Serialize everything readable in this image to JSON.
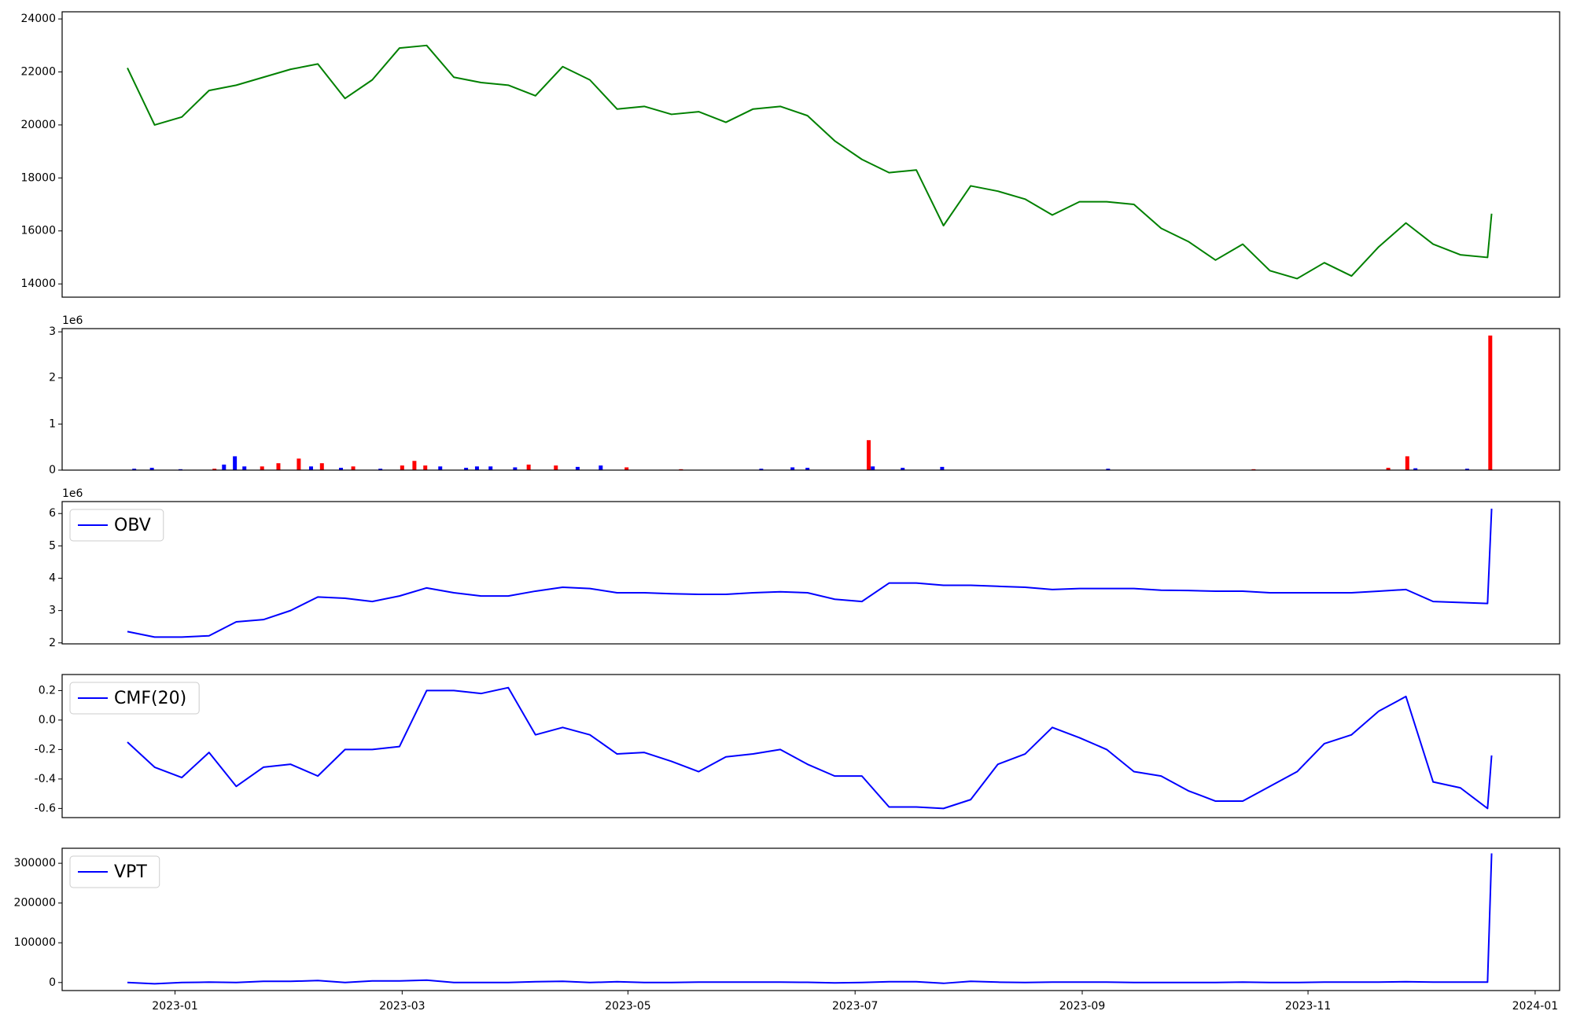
{
  "chart_data": [
    {
      "type": "line",
      "x": [
        2022.965,
        2022.985,
        2023.005,
        2023.025,
        2023.045,
        2023.065,
        2023.085,
        2023.105,
        2023.125,
        2023.145,
        2023.165,
        2023.185,
        2023.205,
        2023.225,
        2023.245,
        2023.265,
        2023.285,
        2023.305,
        2023.325,
        2023.345,
        2023.365,
        2023.385,
        2023.405,
        2023.425,
        2023.445,
        2023.465,
        2023.485,
        2023.505,
        2023.525,
        2023.545,
        2023.565,
        2023.585,
        2023.605,
        2023.625,
        2023.645,
        2023.665,
        2023.685,
        2023.705,
        2023.725,
        2023.745,
        2023.765,
        2023.785,
        2023.805,
        2023.825,
        2023.845,
        2023.865,
        2023.885,
        2023.905,
        2023.925,
        2023.945,
        2023.965,
        2023.968
      ],
      "series": [
        {
          "color": "#008000",
          "values": [
            22150,
            20000,
            20300,
            21300,
            21500,
            21800,
            22100,
            22300,
            21000,
            21700,
            22900,
            23000,
            21800,
            21600,
            21500,
            21100,
            22200,
            21700,
            20600,
            20700,
            20400,
            20500,
            20100,
            20600,
            20700,
            20350,
            19400,
            18700,
            18200,
            18300,
            16200,
            17700,
            17500,
            17200,
            16600,
            17100,
            17100,
            17000,
            16100,
            15600,
            14900,
            15500,
            14500,
            14200,
            14800,
            14300,
            15400,
            16300,
            15500,
            15100,
            15000,
            16650
          ]
        }
      ],
      "xlim": [
        2022.917,
        2024.018
      ],
      "ylim": [
        13500,
        24270
      ],
      "yticks": [
        14000,
        16000,
        18000,
        20000,
        22000,
        24000
      ]
    },
    {
      "type": "bar",
      "offset_label": "1e6",
      "x": [
        2022.97,
        2022.983,
        2023.004,
        2023.029,
        2023.036,
        2023.044,
        2023.051,
        2023.064,
        2023.076,
        2023.091,
        2023.1,
        2023.108,
        2023.122,
        2023.131,
        2023.151,
        2023.167,
        2023.176,
        2023.184,
        2023.195,
        2023.214,
        2023.222,
        2023.232,
        2023.25,
        2023.26,
        2023.28,
        2023.296,
        2023.313,
        2023.332,
        2023.372,
        2023.431,
        2023.454,
        2023.465,
        2023.51,
        2023.513,
        2023.535,
        2023.564,
        2023.686,
        2023.793,
        2023.892,
        2023.906,
        2023.912,
        2023.95,
        2023.967
      ],
      "values": [
        0.03,
        0.05,
        0.02,
        0.03,
        0.12,
        0.3,
        0.08,
        0.08,
        0.15,
        0.25,
        0.08,
        0.15,
        0.05,
        0.08,
        0.03,
        0.1,
        0.2,
        0.1,
        0.08,
        0.05,
        0.08,
        0.08,
        0.06,
        0.12,
        0.1,
        0.07,
        0.1,
        0.06,
        0.02,
        0.03,
        0.06,
        0.05,
        0.65,
        0.08,
        0.05,
        0.07,
        0.03,
        0.02,
        0.05,
        0.3,
        0.04,
        0.03,
        2.92
      ],
      "colors": [
        "#0000ff",
        "#0000ff",
        "#0000ff",
        "#ff0000",
        "#0000ff",
        "#0000ff",
        "#0000ff",
        "#ff0000",
        "#ff0000",
        "#ff0000",
        "#0000ff",
        "#ff0000",
        "#0000ff",
        "#ff0000",
        "#0000ff",
        "#ff0000",
        "#ff0000",
        "#ff0000",
        "#0000ff",
        "#0000ff",
        "#0000ff",
        "#0000ff",
        "#0000ff",
        "#ff0000",
        "#ff0000",
        "#0000ff",
        "#0000ff",
        "#ff0000",
        "#ff0000",
        "#0000ff",
        "#0000ff",
        "#0000ff",
        "#ff0000",
        "#0000ff",
        "#0000ff",
        "#0000ff",
        "#0000ff",
        "#ff0000",
        "#ff0000",
        "#ff0000",
        "#0000ff",
        "#0000ff",
        "#ff0000"
      ],
      "xlim": [
        2022.917,
        2024.018
      ],
      "ylim": [
        0,
        3.07
      ],
      "yticks": [
        0,
        1,
        2,
        3
      ]
    },
    {
      "type": "line",
      "offset_label": "1e6",
      "legend": "upper left",
      "x": [
        2022.965,
        2022.985,
        2023.005,
        2023.025,
        2023.045,
        2023.065,
        2023.085,
        2023.105,
        2023.125,
        2023.145,
        2023.165,
        2023.185,
        2023.205,
        2023.225,
        2023.245,
        2023.265,
        2023.285,
        2023.305,
        2023.325,
        2023.345,
        2023.365,
        2023.385,
        2023.405,
        2023.425,
        2023.445,
        2023.465,
        2023.485,
        2023.505,
        2023.525,
        2023.545,
        2023.565,
        2023.585,
        2023.605,
        2023.625,
        2023.645,
        2023.665,
        2023.685,
        2023.705,
        2023.725,
        2023.745,
        2023.765,
        2023.785,
        2023.805,
        2023.825,
        2023.845,
        2023.865,
        2023.885,
        2023.905,
        2023.925,
        2023.945,
        2023.965,
        2023.968
      ],
      "series": [
        {
          "name": "OBV",
          "color": "#0000ff",
          "values": [
            2.35,
            2.18,
            2.18,
            2.22,
            2.65,
            2.72,
            3.0,
            3.42,
            3.38,
            3.28,
            3.45,
            3.7,
            3.55,
            3.45,
            3.45,
            3.6,
            3.72,
            3.68,
            3.55,
            3.55,
            3.52,
            3.5,
            3.5,
            3.55,
            3.58,
            3.55,
            3.35,
            3.28,
            3.85,
            3.85,
            3.78,
            3.78,
            3.75,
            3.72,
            3.65,
            3.68,
            3.68,
            3.68,
            3.63,
            3.62,
            3.6,
            3.6,
            3.55,
            3.55,
            3.55,
            3.55,
            3.6,
            3.65,
            3.28,
            3.25,
            3.22,
            6.15
          ]
        }
      ],
      "xlim": [
        2022.917,
        2024.018
      ],
      "ylim": [
        1.97,
        6.37
      ],
      "yticks": [
        2,
        3,
        4,
        5,
        6
      ]
    },
    {
      "type": "line",
      "legend": "upper left",
      "x": [
        2022.965,
        2022.985,
        2023.005,
        2023.025,
        2023.045,
        2023.065,
        2023.085,
        2023.105,
        2023.125,
        2023.145,
        2023.165,
        2023.185,
        2023.205,
        2023.225,
        2023.245,
        2023.265,
        2023.285,
        2023.305,
        2023.325,
        2023.345,
        2023.365,
        2023.385,
        2023.405,
        2023.425,
        2023.445,
        2023.465,
        2023.485,
        2023.505,
        2023.525,
        2023.545,
        2023.565,
        2023.585,
        2023.605,
        2023.625,
        2023.645,
        2023.665,
        2023.685,
        2023.705,
        2023.725,
        2023.745,
        2023.765,
        2023.785,
        2023.805,
        2023.825,
        2023.845,
        2023.865,
        2023.885,
        2023.905,
        2023.925,
        2023.945,
        2023.965,
        2023.968
      ],
      "series": [
        {
          "name": "CMF(20)",
          "color": "#0000ff",
          "values": [
            -0.15,
            -0.32,
            -0.39,
            -0.22,
            -0.45,
            -0.32,
            -0.3,
            -0.38,
            -0.2,
            -0.2,
            -0.18,
            0.2,
            0.2,
            0.18,
            0.22,
            -0.1,
            -0.05,
            -0.1,
            -0.23,
            -0.22,
            -0.28,
            -0.35,
            -0.25,
            -0.23,
            -0.2,
            -0.3,
            -0.38,
            -0.38,
            -0.59,
            -0.59,
            -0.6,
            -0.54,
            -0.3,
            -0.23,
            -0.05,
            -0.12,
            -0.2,
            -0.35,
            -0.38,
            -0.48,
            -0.55,
            -0.55,
            -0.45,
            -0.35,
            -0.16,
            -0.1,
            0.06,
            0.16,
            -0.42,
            -0.46,
            -0.6,
            -0.24
          ]
        }
      ],
      "xlim": [
        2022.917,
        2024.018
      ],
      "ylim": [
        -0.662,
        0.309
      ],
      "yticks": [
        -0.6,
        -0.4,
        -0.2,
        {
          "value": 0,
          "label": "0.0"
        },
        0.2
      ]
    },
    {
      "type": "line",
      "legend": "upper left",
      "x": [
        2022.965,
        2022.985,
        2023.005,
        2023.025,
        2023.045,
        2023.065,
        2023.085,
        2023.105,
        2023.125,
        2023.145,
        2023.165,
        2023.185,
        2023.205,
        2023.225,
        2023.245,
        2023.265,
        2023.285,
        2023.305,
        2023.325,
        2023.345,
        2023.365,
        2023.385,
        2023.405,
        2023.425,
        2023.445,
        2023.465,
        2023.485,
        2023.505,
        2023.525,
        2023.545,
        2023.565,
        2023.585,
        2023.605,
        2023.625,
        2023.645,
        2023.665,
        2023.685,
        2023.705,
        2023.725,
        2023.745,
        2023.765,
        2023.785,
        2023.805,
        2023.825,
        2023.845,
        2023.865,
        2023.885,
        2023.905,
        2023.925,
        2023.945,
        2023.965,
        2023.968
      ],
      "series": [
        {
          "name": "VPT",
          "color": "#0000ff",
          "values": [
            0,
            -3000,
            0,
            1000,
            0,
            3000,
            3000,
            5000,
            0,
            4000,
            4000,
            6000,
            0,
            0,
            0,
            2000,
            3000,
            0,
            2000,
            0,
            0,
            1000,
            1000,
            1000,
            1000,
            500,
            -1000,
            0,
            2000,
            2000,
            -2000,
            3000,
            1000,
            0,
            1000,
            1000,
            1000,
            0,
            0,
            0,
            0,
            1000,
            0,
            0,
            1000,
            1000,
            1000,
            2000,
            1000,
            1000,
            1000,
            325000
          ]
        }
      ],
      "xlim": [
        2022.917,
        2024.018
      ],
      "ylim": [
        -20170,
        337800
      ],
      "yticks": [
        0,
        100000,
        200000,
        300000
      ],
      "xticks": [
        {
          "value": 2023.0,
          "label": "2023-01"
        },
        {
          "value": 2023.167,
          "label": "2023-03"
        },
        {
          "value": 2023.333,
          "label": "2023-05"
        },
        {
          "value": 2023.5,
          "label": "2023-07"
        },
        {
          "value": 2023.667,
          "label": "2023-09"
        },
        {
          "value": 2023.833,
          "label": "2023-11"
        },
        {
          "value": 2024.0,
          "label": "2024-01"
        }
      ]
    }
  ]
}
